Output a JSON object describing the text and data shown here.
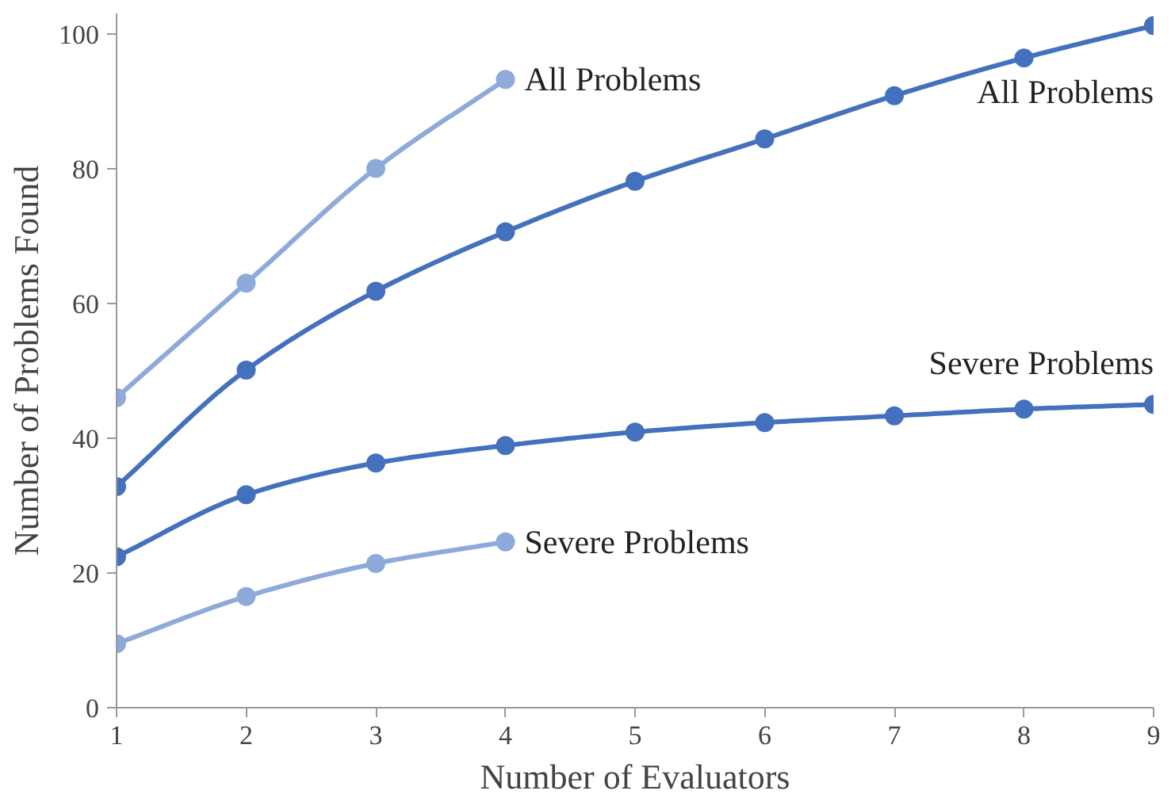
{
  "chart_data": {
    "type": "line",
    "xlabel": "Number of Evaluators",
    "ylabel": "Number of Problems Found",
    "xlim": [
      1,
      9
    ],
    "ylim": [
      0,
      103
    ],
    "xticks": [
      1,
      2,
      3,
      4,
      5,
      6,
      7,
      8,
      9
    ],
    "yticks": [
      0,
      20,
      40,
      60,
      80,
      100
    ],
    "marker": "circle",
    "grid": false,
    "series": [
      {
        "name": "All Problems",
        "color": "#8eaadb",
        "x": [
          1,
          2,
          3,
          4
        ],
        "values": [
          46.0,
          63.0,
          80.0,
          93.2
        ]
      },
      {
        "name": "All Problems",
        "color": "#4471bd",
        "x": [
          1,
          2,
          3,
          4,
          5,
          6,
          7,
          8,
          9
        ],
        "values": [
          32.8,
          50.1,
          61.8,
          70.6,
          78.1,
          84.4,
          90.8,
          96.4,
          101.2
        ]
      },
      {
        "name": "Severe Problems",
        "color": "#4471bd",
        "x": [
          1,
          2,
          3,
          4,
          5,
          6,
          7,
          8,
          9
        ],
        "values": [
          22.4,
          31.6,
          36.3,
          38.9,
          40.9,
          42.3,
          43.3,
          44.3,
          45.0
        ]
      },
      {
        "name": "Severe Problems",
        "color": "#8eaadb",
        "x": [
          1,
          2,
          3,
          4
        ],
        "values": [
          9.5,
          16.5,
          21.4,
          24.6
        ]
      }
    ]
  }
}
